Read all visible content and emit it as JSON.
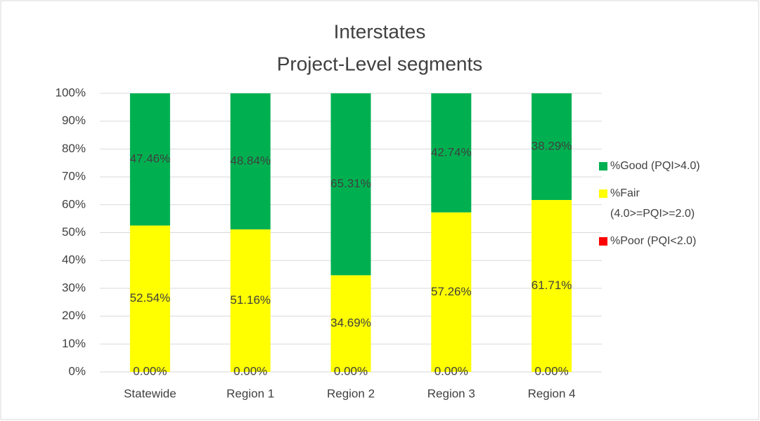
{
  "chart_data": {
    "type": "stacked_bar",
    "title": "Interstates",
    "subtitle": "Project-Level segments",
    "categories": [
      "Statewide",
      "Region 1",
      "Region 2",
      "Region 3",
      "Region 4"
    ],
    "series": [
      {
        "name": "%Poor (PQI<2.0)",
        "color": "#ff0000",
        "values": [
          0,
          0,
          0,
          0,
          0
        ],
        "value_labels": [
          "0.00%",
          "0.00%",
          "0.00%",
          "0.00%",
          "0.00%"
        ]
      },
      {
        "name": "%Fair (4.0>=PQI>=2.0)",
        "color": "#ffff00",
        "values": [
          52.54,
          51.16,
          34.69,
          57.26,
          61.71
        ],
        "value_labels": [
          "52.54%",
          "51.16%",
          "34.69%",
          "57.26%",
          "61.71%"
        ]
      },
      {
        "name": "%Good (PQI>4.0)",
        "color": "#00b050",
        "values": [
          47.46,
          48.84,
          65.31,
          42.74,
          38.29
        ],
        "value_labels": [
          "47.46%",
          "48.84%",
          "65.31%",
          "42.74%",
          "38.29%"
        ]
      }
    ],
    "ylim": [
      0,
      100
    ],
    "yticks": [
      {
        "value": 0,
        "label": "0%"
      },
      {
        "value": 10,
        "label": "10%"
      },
      {
        "value": 20,
        "label": "20%"
      },
      {
        "value": 30,
        "label": "30%"
      },
      {
        "value": 40,
        "label": "40%"
      },
      {
        "value": 50,
        "label": "50%"
      },
      {
        "value": 60,
        "label": "60%"
      },
      {
        "value": 70,
        "label": "70%"
      },
      {
        "value": 80,
        "label": "80%"
      },
      {
        "value": 90,
        "label": "90%"
      },
      {
        "value": 100,
        "label": "100%"
      }
    ],
    "grid": true,
    "legend": "right"
  }
}
